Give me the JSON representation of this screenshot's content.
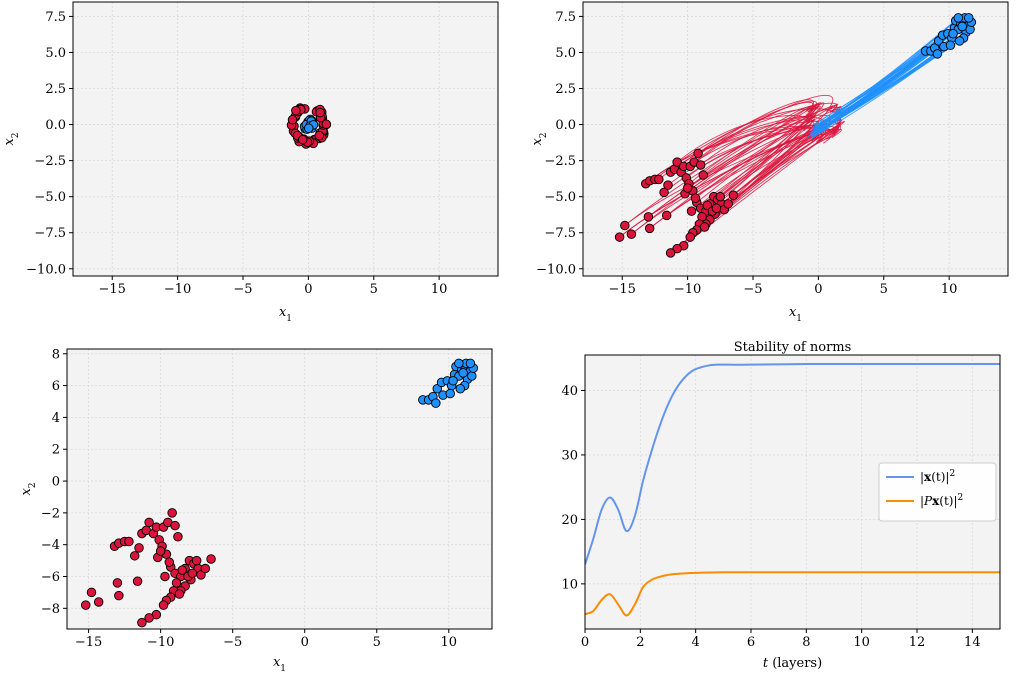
{
  "colors": {
    "red": "#dc143c",
    "blue": "#1e90ff",
    "norm_x": "#6495ed",
    "norm_px": "#ff8c00",
    "panel_bg": "#f3f3f3",
    "grid": "#d9d9d9"
  },
  "chart_data": [
    {
      "type": "scatter",
      "xlabel": "x_1",
      "ylabel": "x_2",
      "xlim": [
        -18,
        14.5
      ],
      "ylim": [
        -10.5,
        8.5
      ],
      "xticks": [
        "−15",
        "−10",
        "−5",
        "0",
        "5",
        "10"
      ],
      "xtick_values": [
        -15,
        -10,
        -5,
        0,
        5,
        10
      ],
      "yticks": [
        "7.5",
        "5.0",
        "2.5",
        "0.0",
        "−2.5",
        "−5.0",
        "−7.5",
        "−10.0"
      ],
      "ytick_values": [
        7.5,
        5.0,
        2.5,
        0.0,
        -2.5,
        -5.0,
        -7.5,
        -10.0
      ],
      "grid": true,
      "series": [
        {
          "color": "red",
          "ring": {
            "center": [
              0,
              0
            ],
            "radius": 1.2,
            "count": 60
          }
        },
        {
          "color": "blue",
          "ring": {
            "center": [
              0,
              0
            ],
            "radius": 0.35,
            "count": 15
          }
        }
      ]
    },
    {
      "type": "line",
      "xlabel": "x_1",
      "ylabel": "x_2",
      "xlim": [
        -18,
        14.5
      ],
      "ylim": [
        -10.5,
        8.5
      ],
      "xticks": [
        "−15",
        "−10",
        "−5",
        "0",
        "5",
        "10"
      ],
      "xtick_values": [
        -15,
        -10,
        -5,
        0,
        5,
        10
      ],
      "yticks": [
        "7.5",
        "5.0",
        "2.5",
        "0.0",
        "−2.5",
        "−5.0",
        "−7.5",
        "−10.0"
      ],
      "ytick_values": [
        7.5,
        5.0,
        2.5,
        0.0,
        -2.5,
        -5.0,
        -7.5,
        -10.0
      ],
      "grid": true,
      "description_free": true,
      "series": [
        {
          "color": "red",
          "trajectories_from": "ring_red",
          "to": "final_red"
        },
        {
          "color": "blue",
          "trajectories_from": "ring_blue",
          "to": "final_blue"
        }
      ]
    },
    {
      "type": "scatter",
      "xlabel": "x_1",
      "ylabel": "x_2",
      "xlim": [
        -16.5,
        13
      ],
      "ylim": [
        -9.3,
        8.3
      ],
      "xticks": [
        "−15",
        "−10",
        "−5",
        "0",
        "5",
        "10"
      ],
      "xtick_values": [
        -15,
        -10,
        -5,
        0,
        5,
        10
      ],
      "yticks": [
        "8",
        "6",
        "4",
        "2",
        "0",
        "−2",
        "−4",
        "−6",
        "−8"
      ],
      "ytick_values": [
        8,
        6,
        4,
        2,
        0,
        -2,
        -4,
        -6,
        -8
      ],
      "grid": true,
      "series": [
        {
          "color": "red",
          "points": [
            [
              -15.2,
              -7.8
            ],
            [
              -14.8,
              -7.0
            ],
            [
              -14.3,
              -7.6
            ],
            [
              -13.0,
              -6.4
            ],
            [
              -12.9,
              -7.2
            ],
            [
              -13.2,
              -4.1
            ],
            [
              -12.9,
              -3.9
            ],
            [
              -12.5,
              -3.8
            ],
            [
              -12.2,
              -3.8
            ],
            [
              -11.8,
              -4.7
            ],
            [
              -11.5,
              -4.2
            ],
            [
              -11.3,
              -3.3
            ],
            [
              -11.0,
              -3.1
            ],
            [
              -10.8,
              -2.6
            ],
            [
              -10.5,
              -3.3
            ],
            [
              -10.3,
              -2.9
            ],
            [
              -10.1,
              -3.7
            ],
            [
              -9.8,
              -2.9
            ],
            [
              -9.5,
              -2.6
            ],
            [
              -9.2,
              -2.0
            ],
            [
              -9.0,
              -2.8
            ],
            [
              -8.8,
              -3.5
            ],
            [
              -9.6,
              -4.6
            ],
            [
              -9.9,
              -4.1
            ],
            [
              -10.2,
              -4.8
            ],
            [
              -9.3,
              -5.4
            ],
            [
              -9.0,
              -5.8
            ],
            [
              -8.6,
              -6.0
            ],
            [
              -8.3,
              -5.5
            ],
            [
              -8.0,
              -5.0
            ],
            [
              -7.7,
              -5.2
            ],
            [
              -7.4,
              -5.5
            ],
            [
              -7.2,
              -5.9
            ],
            [
              -6.9,
              -5.5
            ],
            [
              -6.5,
              -4.9
            ],
            [
              -7.5,
              -5.0
            ],
            [
              -7.9,
              -6.2
            ],
            [
              -8.3,
              -6.6
            ],
            [
              -8.6,
              -6.9
            ],
            [
              -8.9,
              -6.4
            ],
            [
              -9.1,
              -6.9
            ],
            [
              -9.3,
              -7.3
            ],
            [
              -9.6,
              -7.5
            ],
            [
              -9.8,
              -7.8
            ],
            [
              -10.3,
              -8.4
            ],
            [
              -10.8,
              -8.6
            ],
            [
              -11.3,
              -8.9
            ],
            [
              -11.6,
              -6.3
            ],
            [
              -8.7,
              -7.1
            ],
            [
              -8.5,
              -5.6
            ],
            [
              -8.1,
              -6.0
            ],
            [
              -7.8,
              -5.8
            ],
            [
              -9.4,
              -5.1
            ],
            [
              -9.7,
              -6.0
            ],
            [
              -10.0,
              -4.4
            ]
          ]
        },
        {
          "color": "blue",
          "points": [
            [
              8.2,
              5.1
            ],
            [
              8.6,
              5.1
            ],
            [
              8.9,
              5.3
            ],
            [
              9.2,
              5.8
            ],
            [
              9.1,
              4.9
            ],
            [
              9.6,
              5.4
            ],
            [
              9.5,
              6.2
            ],
            [
              9.9,
              6.3
            ],
            [
              10.2,
              6.0
            ],
            [
              10.1,
              5.5
            ],
            [
              10.4,
              6.7
            ],
            [
              10.5,
              7.2
            ],
            [
              10.7,
              6.6
            ],
            [
              10.9,
              7.0
            ],
            [
              11.0,
              7.3
            ],
            [
              11.2,
              7.1
            ],
            [
              11.4,
              7.3
            ],
            [
              11.5,
              6.9
            ],
            [
              11.3,
              6.4
            ],
            [
              11.1,
              6.0
            ],
            [
              10.8,
              5.8
            ],
            [
              11.6,
              6.6
            ],
            [
              11.7,
              7.1
            ],
            [
              11.2,
              7.4
            ],
            [
              10.7,
              7.4
            ],
            [
              10.3,
              6.3
            ],
            [
              11.5,
              7.4
            ],
            [
              11.0,
              6.8
            ]
          ]
        }
      ]
    },
    {
      "type": "line",
      "title": "Stability of norms",
      "xlabel": "t (layers)",
      "xlim": [
        0,
        15
      ],
      "ylim": [
        3,
        45.5
      ],
      "xticks": [
        "0",
        "2",
        "4",
        "6",
        "8",
        "10",
        "12",
        "14"
      ],
      "xtick_values": [
        0,
        2,
        4,
        6,
        8,
        10,
        12,
        14
      ],
      "yticks": [
        "40",
        "30",
        "20",
        "10"
      ],
      "ytick_values": [
        40,
        30,
        20,
        10
      ],
      "grid": true,
      "legend": "center-right",
      "series": [
        {
          "name": "|x(t)|²",
          "color": "norm_x",
          "x": [
            0,
            0.3,
            0.6,
            0.9,
            1.2,
            1.5,
            1.8,
            2.1,
            2.4,
            2.7,
            3.0,
            3.3,
            3.6,
            3.9,
            4.2,
            4.5,
            4.8,
            5.2,
            6,
            8,
            10,
            12,
            15
          ],
          "values": [
            13,
            17,
            21.5,
            23.4,
            21.5,
            18.2,
            20.5,
            26,
            30.5,
            34.5,
            37.8,
            40.3,
            42,
            43.1,
            43.6,
            43.9,
            44,
            44,
            44,
            44.1,
            44.1,
            44.1,
            44.1
          ]
        },
        {
          "name": "|Px(t)|²",
          "color": "norm_px",
          "x": [
            0,
            0.3,
            0.6,
            0.9,
            1.2,
            1.5,
            1.8,
            2.1,
            2.4,
            2.7,
            3.0,
            3.5,
            4.0,
            5,
            6,
            8,
            10,
            12,
            15
          ],
          "values": [
            5.3,
            5.8,
            7.5,
            8.4,
            6.8,
            5.1,
            6.8,
            9.5,
            10.6,
            11.1,
            11.4,
            11.6,
            11.7,
            11.8,
            11.8,
            11.8,
            11.8,
            11.8,
            11.8
          ]
        }
      ]
    }
  ],
  "legend": {
    "entry_x": "|x(t)|",
    "entry_px": "|Px(t)|",
    "sup": "2"
  }
}
